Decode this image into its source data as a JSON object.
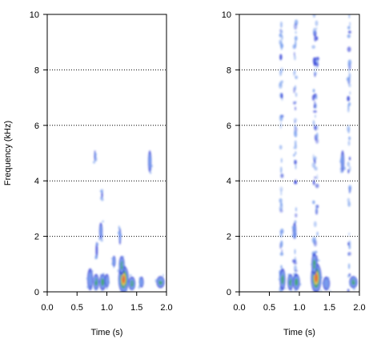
{
  "chart_data": [
    {
      "type": "heatmap",
      "panel": "left",
      "xlabel": "Time (s)",
      "ylabel": "Frequency (kHz)",
      "xlim": [
        0,
        2.0
      ],
      "ylim": [
        0,
        10
      ],
      "x_ticks": [
        "0.0",
        "0.5",
        "1.0",
        "1.5",
        "2.0"
      ],
      "y_ticks": [
        "0",
        "2",
        "4",
        "6",
        "8",
        "10"
      ],
      "grid": "horizontal dotted lines at 2, 4, 6, 8, 10 kHz",
      "colormap": [
        "#2b3bd6",
        "#7aa0ee",
        "#3fa66a",
        "#e6c84a",
        "#e8643c"
      ],
      "blobs": [
        {
          "t": 0.72,
          "f": 0.45,
          "dt": 0.05,
          "df": 0.4,
          "intensity": 0.45
        },
        {
          "t": 0.82,
          "f": 0.35,
          "dt": 0.05,
          "df": 0.3,
          "intensity": 0.55
        },
        {
          "t": 0.93,
          "f": 0.35,
          "dt": 0.06,
          "df": 0.3,
          "intensity": 0.65
        },
        {
          "t": 1.0,
          "f": 0.4,
          "dt": 0.04,
          "df": 0.25,
          "intensity": 0.45
        },
        {
          "t": 1.28,
          "f": 0.45,
          "dt": 0.09,
          "df": 0.5,
          "intensity": 1.0
        },
        {
          "t": 1.25,
          "f": 0.95,
          "dt": 0.05,
          "df": 0.35,
          "intensity": 0.55
        },
        {
          "t": 1.42,
          "f": 0.3,
          "dt": 0.06,
          "df": 0.25,
          "intensity": 0.5
        },
        {
          "t": 1.58,
          "f": 0.35,
          "dt": 0.04,
          "df": 0.2,
          "intensity": 0.4
        },
        {
          "t": 1.9,
          "f": 0.35,
          "dt": 0.07,
          "df": 0.22,
          "intensity": 0.55
        },
        {
          "t": 0.9,
          "f": 2.2,
          "dt": 0.03,
          "df": 0.3,
          "intensity": 0.45
        },
        {
          "t": 0.83,
          "f": 1.5,
          "dt": 0.02,
          "df": 0.3,
          "intensity": 0.25
        },
        {
          "t": 1.22,
          "f": 2.0,
          "dt": 0.02,
          "df": 0.3,
          "intensity": 0.3
        },
        {
          "t": 1.72,
          "f": 4.7,
          "dt": 0.03,
          "df": 0.4,
          "intensity": 0.45
        },
        {
          "t": 0.8,
          "f": 4.9,
          "dt": 0.015,
          "df": 0.2,
          "intensity": 0.2
        },
        {
          "t": 0.92,
          "f": 3.5,
          "dt": 0.015,
          "df": 0.15,
          "intensity": 0.25
        },
        {
          "t": 1.12,
          "f": 1.1,
          "dt": 0.03,
          "df": 0.2,
          "intensity": 0.3
        }
      ]
    },
    {
      "type": "heatmap",
      "panel": "right",
      "xlabel": "Time (s)",
      "ylabel": "",
      "xlim": [
        0,
        2.0
      ],
      "ylim": [
        0,
        10
      ],
      "x_ticks": [
        "0.0",
        "0.5",
        "1.0",
        "1.5",
        "2.0"
      ],
      "y_ticks": [
        "0",
        "2",
        "4",
        "6",
        "8",
        "10"
      ],
      "grid": "horizontal dotted lines at 2, 4, 6, 8, 10 kHz",
      "colormap": [
        "#2b3bd6",
        "#7aa0ee",
        "#3fa66a",
        "#e6c84a",
        "#e8643c"
      ],
      "broadband_streaks": [
        {
          "t": 0.7,
          "width": 0.03,
          "intensity": 0.45
        },
        {
          "t": 0.93,
          "width": 0.04,
          "intensity": 0.5
        },
        {
          "t": 1.27,
          "width": 0.07,
          "intensity": 0.85
        },
        {
          "t": 1.83,
          "width": 0.03,
          "intensity": 0.4
        }
      ],
      "blobs": [
        {
          "t": 0.72,
          "f": 0.45,
          "dt": 0.05,
          "df": 0.4,
          "intensity": 0.5
        },
        {
          "t": 0.85,
          "f": 0.35,
          "dt": 0.05,
          "df": 0.3,
          "intensity": 0.55
        },
        {
          "t": 0.95,
          "f": 0.35,
          "dt": 0.06,
          "df": 0.3,
          "intensity": 0.6
        },
        {
          "t": 1.28,
          "f": 0.5,
          "dt": 0.09,
          "df": 0.55,
          "intensity": 1.0
        },
        {
          "t": 1.25,
          "f": 1.0,
          "dt": 0.05,
          "df": 0.4,
          "intensity": 0.6
        },
        {
          "t": 1.45,
          "f": 0.3,
          "dt": 0.06,
          "df": 0.25,
          "intensity": 0.45
        },
        {
          "t": 1.9,
          "f": 0.35,
          "dt": 0.07,
          "df": 0.22,
          "intensity": 0.5
        },
        {
          "t": 0.92,
          "f": 2.2,
          "dt": 0.03,
          "df": 0.3,
          "intensity": 0.45
        },
        {
          "t": 1.72,
          "f": 4.7,
          "dt": 0.03,
          "df": 0.4,
          "intensity": 0.4
        }
      ]
    }
  ]
}
